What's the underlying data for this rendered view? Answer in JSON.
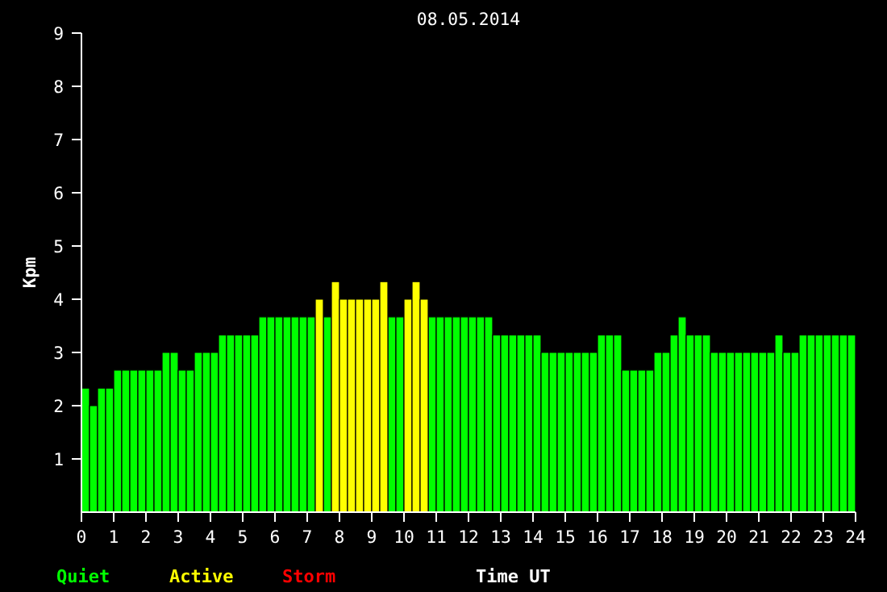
{
  "chart_data": {
    "type": "bar",
    "title": "08.05.2014",
    "xlabel": "Time UT",
    "ylabel": "Kpm",
    "x": [
      0.125,
      0.375,
      0.625,
      0.875,
      1.125,
      1.375,
      1.625,
      1.875,
      2.125,
      2.375,
      2.625,
      2.875,
      3.125,
      3.375,
      3.625,
      3.875,
      4.125,
      4.375,
      4.625,
      4.875,
      5.125,
      5.375,
      5.625,
      5.875,
      6.125,
      6.375,
      6.625,
      6.875,
      7.125,
      7.375,
      7.625,
      7.875,
      8.125,
      8.375,
      8.625,
      8.875,
      9.125,
      9.375,
      9.625,
      9.875,
      10.125,
      10.375,
      10.625,
      10.875,
      11.125,
      11.375,
      11.625,
      11.875,
      12.125,
      12.375,
      12.625,
      12.875,
      13.125,
      13.375,
      13.625,
      13.875,
      14.125,
      14.375,
      14.625,
      14.875,
      15.125,
      15.375,
      15.625,
      15.875,
      16.125,
      16.375,
      16.625,
      16.875,
      17.125,
      17.375,
      17.625,
      17.875,
      18.125,
      18.375,
      18.625,
      18.875,
      19.125,
      19.375,
      19.625,
      19.875,
      20.125,
      20.375,
      20.625,
      20.875,
      21.125,
      21.375,
      21.625,
      21.875,
      22.125,
      22.375,
      22.625,
      22.875,
      23.125,
      23.375,
      23.625,
      23.875
    ],
    "series": [
      {
        "name": "Quiet",
        "color": "#00ff00",
        "values": [
          2.33,
          2,
          2.33,
          2.33,
          2.67,
          2.67,
          2.67,
          2.67,
          2.67,
          2.67,
          3,
          3,
          2.67,
          2.67,
          3,
          3,
          3,
          3.33,
          3.33,
          3.33,
          3.33,
          3.33,
          3.67,
          3.67,
          3.67,
          3.67,
          3.67,
          3.67,
          3.67,
          null,
          3.67,
          null,
          null,
          null,
          null,
          null,
          null,
          null,
          3.67,
          3.67,
          null,
          null,
          null,
          3.67,
          3.67,
          3.67,
          3.67,
          3.67,
          3.67,
          3.67,
          3.67,
          3.33,
          3.33,
          3.33,
          3.33,
          3.33,
          3.33,
          3,
          3,
          3,
          3,
          3,
          3,
          3,
          3.33,
          3.33,
          3.33,
          2.67,
          2.67,
          2.67,
          2.67,
          3,
          3,
          3.33,
          3.67,
          3.33,
          3.33,
          3.33,
          3,
          3,
          3,
          3,
          3,
          3,
          3,
          3,
          3.33,
          3,
          3,
          3.33,
          3.33,
          3.33,
          3.33,
          3.33,
          3.33,
          3.33
        ]
      },
      {
        "name": "Active",
        "color": "#ffff00",
        "values": [
          null,
          null,
          null,
          null,
          null,
          null,
          null,
          null,
          null,
          null,
          null,
          null,
          null,
          null,
          null,
          null,
          null,
          null,
          null,
          null,
          null,
          null,
          null,
          null,
          null,
          null,
          null,
          null,
          null,
          4,
          null,
          4.33,
          4,
          4,
          4,
          4,
          4,
          4.33,
          null,
          null,
          4,
          4.33,
          4,
          null,
          null,
          null,
          null,
          null,
          null,
          null,
          null,
          null,
          null,
          null,
          null,
          null,
          null,
          null,
          null,
          null,
          null,
          null,
          null,
          null,
          null,
          null,
          null,
          null,
          null,
          null,
          null,
          null,
          null,
          null,
          null,
          null,
          null,
          null,
          null,
          null,
          null,
          null,
          null,
          null,
          null,
          null,
          null,
          null,
          null,
          null,
          null,
          null,
          null,
          null,
          null,
          null
        ]
      },
      {
        "name": "Storm",
        "color": "#ff0000",
        "values": [
          null,
          null,
          null,
          null,
          null,
          null,
          null,
          null,
          null,
          null,
          null,
          null,
          null,
          null,
          null,
          null,
          null,
          null,
          null,
          null,
          null,
          null,
          null,
          null,
          null,
          null,
          null,
          null,
          null,
          null,
          null,
          null,
          null,
          null,
          null,
          null,
          null,
          null,
          null,
          null,
          null,
          null,
          null,
          null,
          null,
          null,
          null,
          null,
          null,
          null,
          null,
          null,
          null,
          null,
          null,
          null,
          null,
          null,
          null,
          null,
          null,
          null,
          null,
          null,
          null,
          null,
          null,
          null,
          null,
          null,
          null,
          null,
          null,
          null,
          null,
          null,
          null,
          null,
          null,
          null,
          null,
          null,
          null,
          null,
          null,
          null,
          null,
          null,
          null,
          null,
          null,
          null,
          null,
          null,
          null,
          null
        ]
      }
    ],
    "xlim": [
      0,
      24
    ],
    "xticks": [
      0,
      1,
      2,
      3,
      4,
      5,
      6,
      7,
      8,
      9,
      10,
      11,
      12,
      13,
      14,
      15,
      16,
      17,
      18,
      19,
      20,
      21,
      22,
      23,
      24
    ],
    "ylim": [
      0,
      9
    ],
    "yticks": [
      1,
      2,
      3,
      4,
      5,
      6,
      7,
      8,
      9
    ],
    "grid": false
  }
}
